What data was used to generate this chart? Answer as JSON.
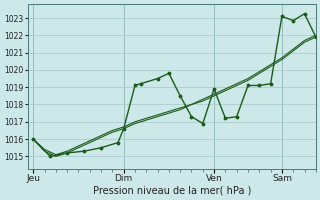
{
  "background_color": "#cce8e8",
  "grid_color": "#aacccc",
  "line_color": "#1a5c1a",
  "xlabel": "Pression niveau de la mer( hPa )",
  "ylim": [
    1014.3,
    1023.8
  ],
  "yticks": [
    1015,
    1016,
    1017,
    1018,
    1019,
    1020,
    1021,
    1022,
    1023
  ],
  "xtick_labels": [
    "Jeu",
    "Dim",
    "Ven",
    "Sam"
  ],
  "xtick_positions": [
    0,
    32,
    64,
    88
  ],
  "vline_positions": [
    0,
    32,
    64,
    88
  ],
  "xlim": [
    -2,
    100
  ],
  "series_smooth1_x": [
    0,
    4,
    8,
    12,
    16,
    20,
    24,
    28,
    32,
    36,
    40,
    44,
    48,
    52,
    56,
    60,
    64,
    68,
    72,
    76,
    80,
    84,
    88,
    92,
    96,
    100
  ],
  "series_smooth1_y": [
    1016.0,
    1015.4,
    1015.1,
    1015.3,
    1015.6,
    1015.9,
    1016.2,
    1016.5,
    1016.7,
    1017.0,
    1017.2,
    1017.4,
    1017.6,
    1017.8,
    1018.0,
    1018.3,
    1018.6,
    1018.9,
    1019.2,
    1019.5,
    1019.9,
    1020.3,
    1020.7,
    1021.2,
    1021.7,
    1022.0
  ],
  "series_smooth2_x": [
    0,
    4,
    8,
    12,
    16,
    20,
    24,
    28,
    32,
    36,
    40,
    44,
    48,
    52,
    56,
    60,
    64,
    68,
    72,
    76,
    80,
    84,
    88,
    92,
    96,
    100
  ],
  "series_smooth2_y": [
    1016.0,
    1015.3,
    1015.0,
    1015.2,
    1015.5,
    1015.8,
    1016.1,
    1016.4,
    1016.6,
    1016.9,
    1017.1,
    1017.3,
    1017.5,
    1017.7,
    1018.0,
    1018.2,
    1018.5,
    1018.8,
    1019.1,
    1019.4,
    1019.8,
    1020.2,
    1020.6,
    1021.1,
    1021.6,
    1021.9
  ],
  "series_jagged_x": [
    0,
    6,
    12,
    18,
    24,
    30,
    32,
    36,
    38,
    44,
    48,
    52,
    56,
    60,
    64,
    68,
    72,
    76,
    80,
    84,
    88,
    92,
    96,
    100
  ],
  "series_jagged_y": [
    1016.0,
    1015.0,
    1015.2,
    1015.3,
    1015.5,
    1015.8,
    1016.6,
    1019.1,
    1019.2,
    1019.5,
    1019.8,
    1018.5,
    1017.3,
    1016.9,
    1018.9,
    1017.2,
    1017.3,
    1019.1,
    1019.1,
    1019.2,
    1023.1,
    1022.85,
    1023.25,
    1021.9
  ]
}
